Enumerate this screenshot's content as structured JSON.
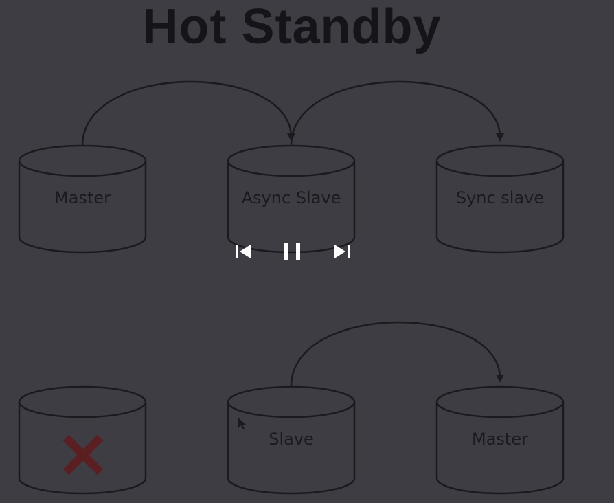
{
  "title": "Hot Standby",
  "top_row": {
    "db1": "Master",
    "db2": "Async Slave",
    "db3": "Sync slave"
  },
  "bottom_row": {
    "db1_status": "failed-x-icon",
    "db2": "Slave",
    "db3": "Master"
  },
  "controls": {
    "prev": "skip-back-icon",
    "pause": "pause-icon",
    "next": "skip-forward-icon"
  },
  "colors": {
    "background": "#3e3d44",
    "stroke": "#1a1a1f",
    "failure_x": "#5b1f22",
    "controls": "#ffffff"
  }
}
